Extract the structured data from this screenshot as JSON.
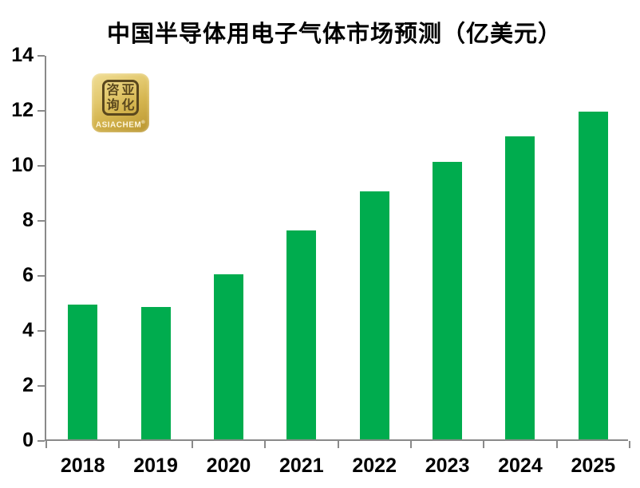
{
  "logo": {
    "brand": "ASIACHEM",
    "registered": "®",
    "chars": [
      "咨",
      "亚",
      "询",
      "化"
    ],
    "bg_color": "#d4b44e",
    "ink_color": "#5a471d",
    "text_color": "#fdf6dd"
  },
  "chart_data": {
    "type": "bar",
    "title": "中国半导体用电子气体市场预测（亿美元）",
    "categories": [
      "2018",
      "2019",
      "2020",
      "2021",
      "2022",
      "2023",
      "2024",
      "2025"
    ],
    "values": [
      4.9,
      4.8,
      6.0,
      7.6,
      9.0,
      10.1,
      11.0,
      11.9
    ],
    "xlabel": "",
    "ylabel": "",
    "ylim": [
      0,
      14
    ],
    "yticks": [
      0,
      2,
      4,
      6,
      8,
      10,
      12,
      14
    ],
    "grid": false,
    "legend_position": "none",
    "bar_color": "#00AC4E",
    "axis_color": "#8a8a8a",
    "label_color": "#000000"
  }
}
